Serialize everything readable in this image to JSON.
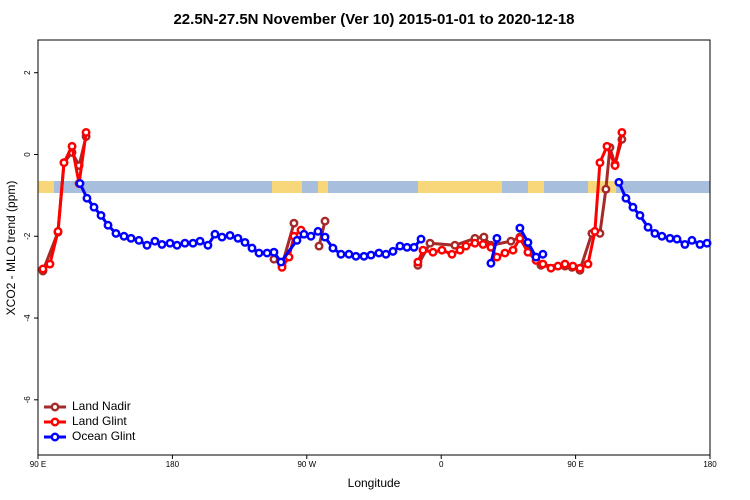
{
  "chart_data": {
    "type": "line",
    "title": "22.5N-27.5N November (Ver 10)   2015-01-01 to 2020-12-18",
    "x_label": "Longitude",
    "y_label": "XCO2 - MLO trend (ppm)",
    "xlim": [
      90,
      540
    ],
    "xticks": [
      {
        "value": 90,
        "label": "90 E"
      },
      {
        "value": 180,
        "label": "180"
      },
      {
        "value": 270,
        "label": "90 W"
      },
      {
        "value": 360,
        "label": "0"
      },
      {
        "value": 450,
        "label": "90 E"
      },
      {
        "value": 540,
        "label": "180"
      }
    ],
    "ylim": [
      -7.35,
      2.8
    ],
    "yticks": [
      -6,
      -4,
      -2,
      0,
      2
    ],
    "legend": "bottomleft",
    "series": [
      {
        "name": "Land Nadir",
        "color": "#a52a2a",
        "x": [
          93.3,
          103.4,
          107.4,
          112.8,
          117.5,
          122.2,
          null,
          248.0,
          253.4,
          261.4,
          null,
          278.2,
          282.2,
          null,
          344.4,
          352.5,
          369.2,
          382.6,
          388.6,
          393.3,
          406.7,
          412.7,
          426.8,
          442.9,
          447.6,
          452.9,
          460.9,
          466.3,
          470.3,
          473.0,
          476.4,
          481.0
        ],
        "values": [
          -2.85,
          -1.9,
          -0.2,
          0.05,
          -0.27,
          0.44,
          null,
          -2.56,
          -2.71,
          -1.68,
          null,
          -2.24,
          -1.63,
          null,
          -2.71,
          -2.17,
          -2.22,
          -2.05,
          -2.02,
          -2.22,
          -2.12,
          -2.02,
          -2.71,
          -2.73,
          -2.76,
          -2.83,
          -1.93,
          -1.93,
          -0.85,
          0.17,
          -0.24,
          0.37
        ]
      },
      {
        "name": "Land Glint",
        "color": "#ff0000",
        "x": [
          93.3,
          98.0,
          103.4,
          107.4,
          112.8,
          117.5,
          122.2,
          null,
          253.4,
          258.1,
          261.4,
          266.1,
          null,
          344.4,
          347.8,
          354.5,
          360.5,
          367.2,
          372.6,
          376.6,
          382.6,
          388.0,
          393.3,
          397.3,
          402.7,
          408.1,
          412.7,
          418.1,
          423.5,
          428.1,
          433.5,
          438.2,
          442.9,
          448.2,
          452.9,
          458.3,
          462.9,
          466.3,
          471.0,
          476.4,
          481.0
        ],
        "values": [
          -2.8,
          -2.68,
          -1.88,
          -0.2,
          0.2,
          -0.71,
          0.54,
          null,
          -2.76,
          -2.51,
          -2.0,
          -1.85,
          null,
          -2.63,
          -2.34,
          -2.39,
          -2.34,
          -2.44,
          -2.34,
          -2.24,
          -2.17,
          -2.2,
          -2.27,
          -2.51,
          -2.41,
          -2.34,
          -2.05,
          -2.39,
          -2.59,
          -2.68,
          -2.78,
          -2.73,
          -2.68,
          -2.73,
          -2.78,
          -2.68,
          -1.88,
          -0.2,
          0.2,
          -0.27,
          0.54
        ]
      },
      {
        "name": "Ocean Glint",
        "color": "#0000ff",
        "x": [
          118.1,
          122.8,
          127.5,
          132.2,
          136.9,
          142.2,
          147.6,
          152.3,
          157.6,
          163.0,
          168.3,
          173.0,
          178.4,
          183.1,
          188.4,
          193.8,
          198.5,
          203.8,
          208.5,
          213.2,
          218.6,
          223.9,
          228.6,
          233.3,
          238.0,
          243.4,
          248.0,
          252.7,
          263.4,
          268.1,
          272.8,
          277.5,
          282.2,
          287.5,
          292.9,
          298.2,
          302.9,
          308.3,
          313.0,
          318.3,
          323.0,
          327.7,
          332.4,
          337.1,
          341.8,
          346.5,
          null,
          393.3,
          397.3,
          null,
          412.7,
          418.1,
          423.5,
          428.1,
          null,
          479.0,
          483.7,
          488.4,
          493.1,
          498.5,
          503.1,
          507.8,
          513.2,
          517.9,
          523.2,
          527.9,
          533.3,
          538.0
        ],
        "values": [
          -0.71,
          -1.07,
          -1.29,
          -1.49,
          -1.73,
          -1.93,
          -2.0,
          -2.05,
          -2.1,
          -2.22,
          -2.12,
          -2.2,
          -2.17,
          -2.22,
          -2.17,
          -2.17,
          -2.12,
          -2.22,
          -1.95,
          -2.02,
          -1.98,
          -2.05,
          -2.15,
          -2.29,
          -2.41,
          -2.41,
          -2.39,
          -2.63,
          -2.1,
          -1.95,
          -2.0,
          -1.88,
          -2.02,
          -2.29,
          -2.44,
          -2.44,
          -2.49,
          -2.49,
          -2.46,
          -2.41,
          -2.44,
          -2.37,
          -2.24,
          -2.27,
          -2.27,
          -2.07,
          null,
          -2.66,
          -2.05,
          null,
          -1.8,
          -2.15,
          -2.51,
          -2.44,
          null,
          -0.68,
          -1.07,
          -1.29,
          -1.49,
          -1.78,
          -1.93,
          -2.0,
          -2.05,
          -2.07,
          -2.2,
          -2.1,
          -2.2,
          -2.17
        ]
      }
    ]
  }
}
